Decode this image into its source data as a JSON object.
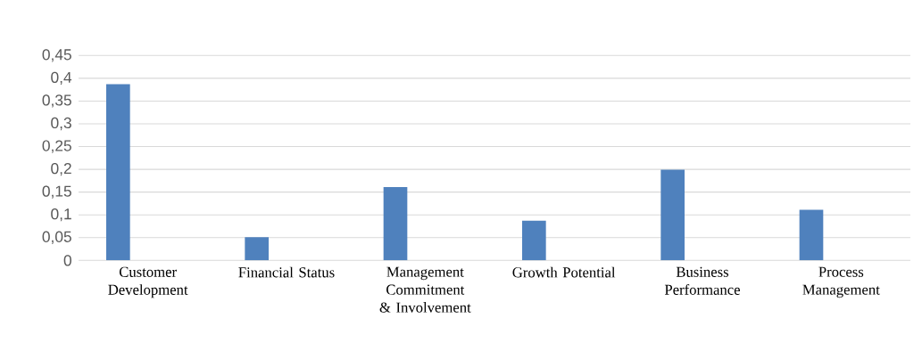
{
  "chart_data": {
    "type": "bar",
    "categories": [
      "Customer Development",
      "Financial Status",
      "Management Commitment & Involvement",
      "Growth Potential",
      "Business Performance",
      "Process Management"
    ],
    "values": [
      0.387,
      0.051,
      0.161,
      0.087,
      0.199,
      0.111
    ],
    "color": "#4f81bd",
    "ylim": [
      0,
      0.45
    ],
    "yticks": [
      0,
      {
        "value": 0.05,
        "label": "0,05"
      },
      {
        "value": 0.1,
        "label": "0,1"
      },
      {
        "value": 0.15,
        "label": "0,15"
      },
      {
        "value": 0.2,
        "label": "0,2"
      },
      {
        "value": 0.25,
        "label": "0,25"
      },
      {
        "value": 0.3,
        "label": "0,3"
      },
      {
        "value": 0.35,
        "label": "0,35"
      },
      {
        "value": 0.4,
        "label": "0,4"
      },
      {
        "value": 0.45,
        "label": "0,45"
      }
    ],
    "grid": "y"
  }
}
